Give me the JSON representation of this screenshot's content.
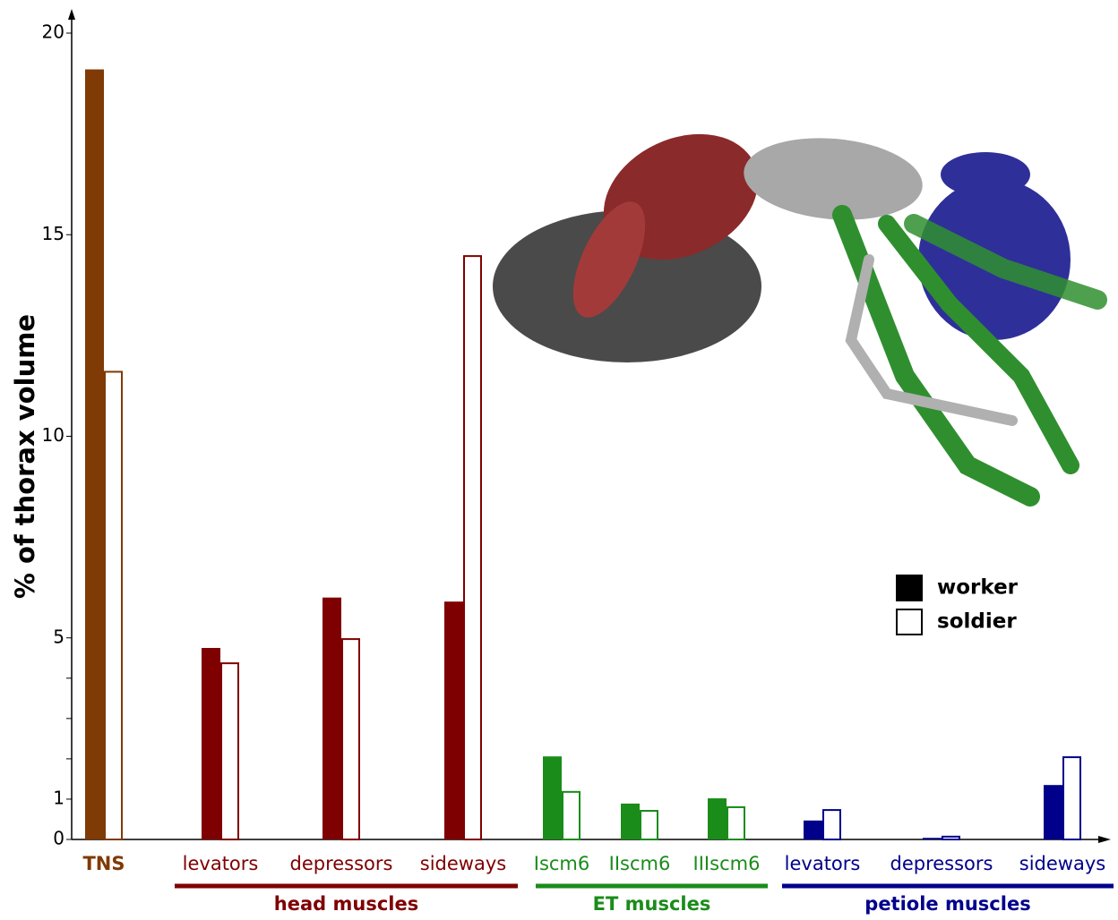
{
  "chart_data": {
    "type": "grouped-bar",
    "y_label": "% of thorax volume",
    "ylim": [
      0,
      20
    ],
    "yticks": [
      0,
      1,
      5,
      10,
      15,
      20
    ],
    "minor_yticks": [
      2,
      3,
      4
    ],
    "series": [
      {
        "name": "worker",
        "color": "#000000",
        "fill": "solid"
      },
      {
        "name": "soldier",
        "color": "#000000",
        "fill": "outline"
      }
    ],
    "groups": [
      {
        "color": "#7f3a05",
        "categories": [
          "TNS"
        ],
        "values": [
          [
            19.1,
            11.6
          ]
        ]
      },
      {
        "name": "head muscles",
        "color": "#7f0000",
        "categories": [
          "levators",
          "depressors",
          "sideways"
        ],
        "values": [
          [
            4.75,
            4.37
          ],
          [
            6.0,
            4.97
          ],
          [
            5.9,
            14.47
          ]
        ]
      },
      {
        "name": "ET muscles",
        "color": "#1a8c1a",
        "categories": [
          "Iscm6",
          "IIscm6",
          "IIIscm6"
        ],
        "values": [
          [
            2.06,
            1.18
          ],
          [
            0.89,
            0.71
          ],
          [
            1.02,
            0.8
          ]
        ]
      },
      {
        "name": "petiole muscles",
        "color": "#00008b",
        "categories": [
          "levators",
          "depressors",
          "sideways"
        ],
        "values": [
          [
            0.47,
            0.73
          ],
          [
            0.04,
            0.07
          ],
          [
            1.35,
            2.04
          ]
        ]
      }
    ]
  }
}
